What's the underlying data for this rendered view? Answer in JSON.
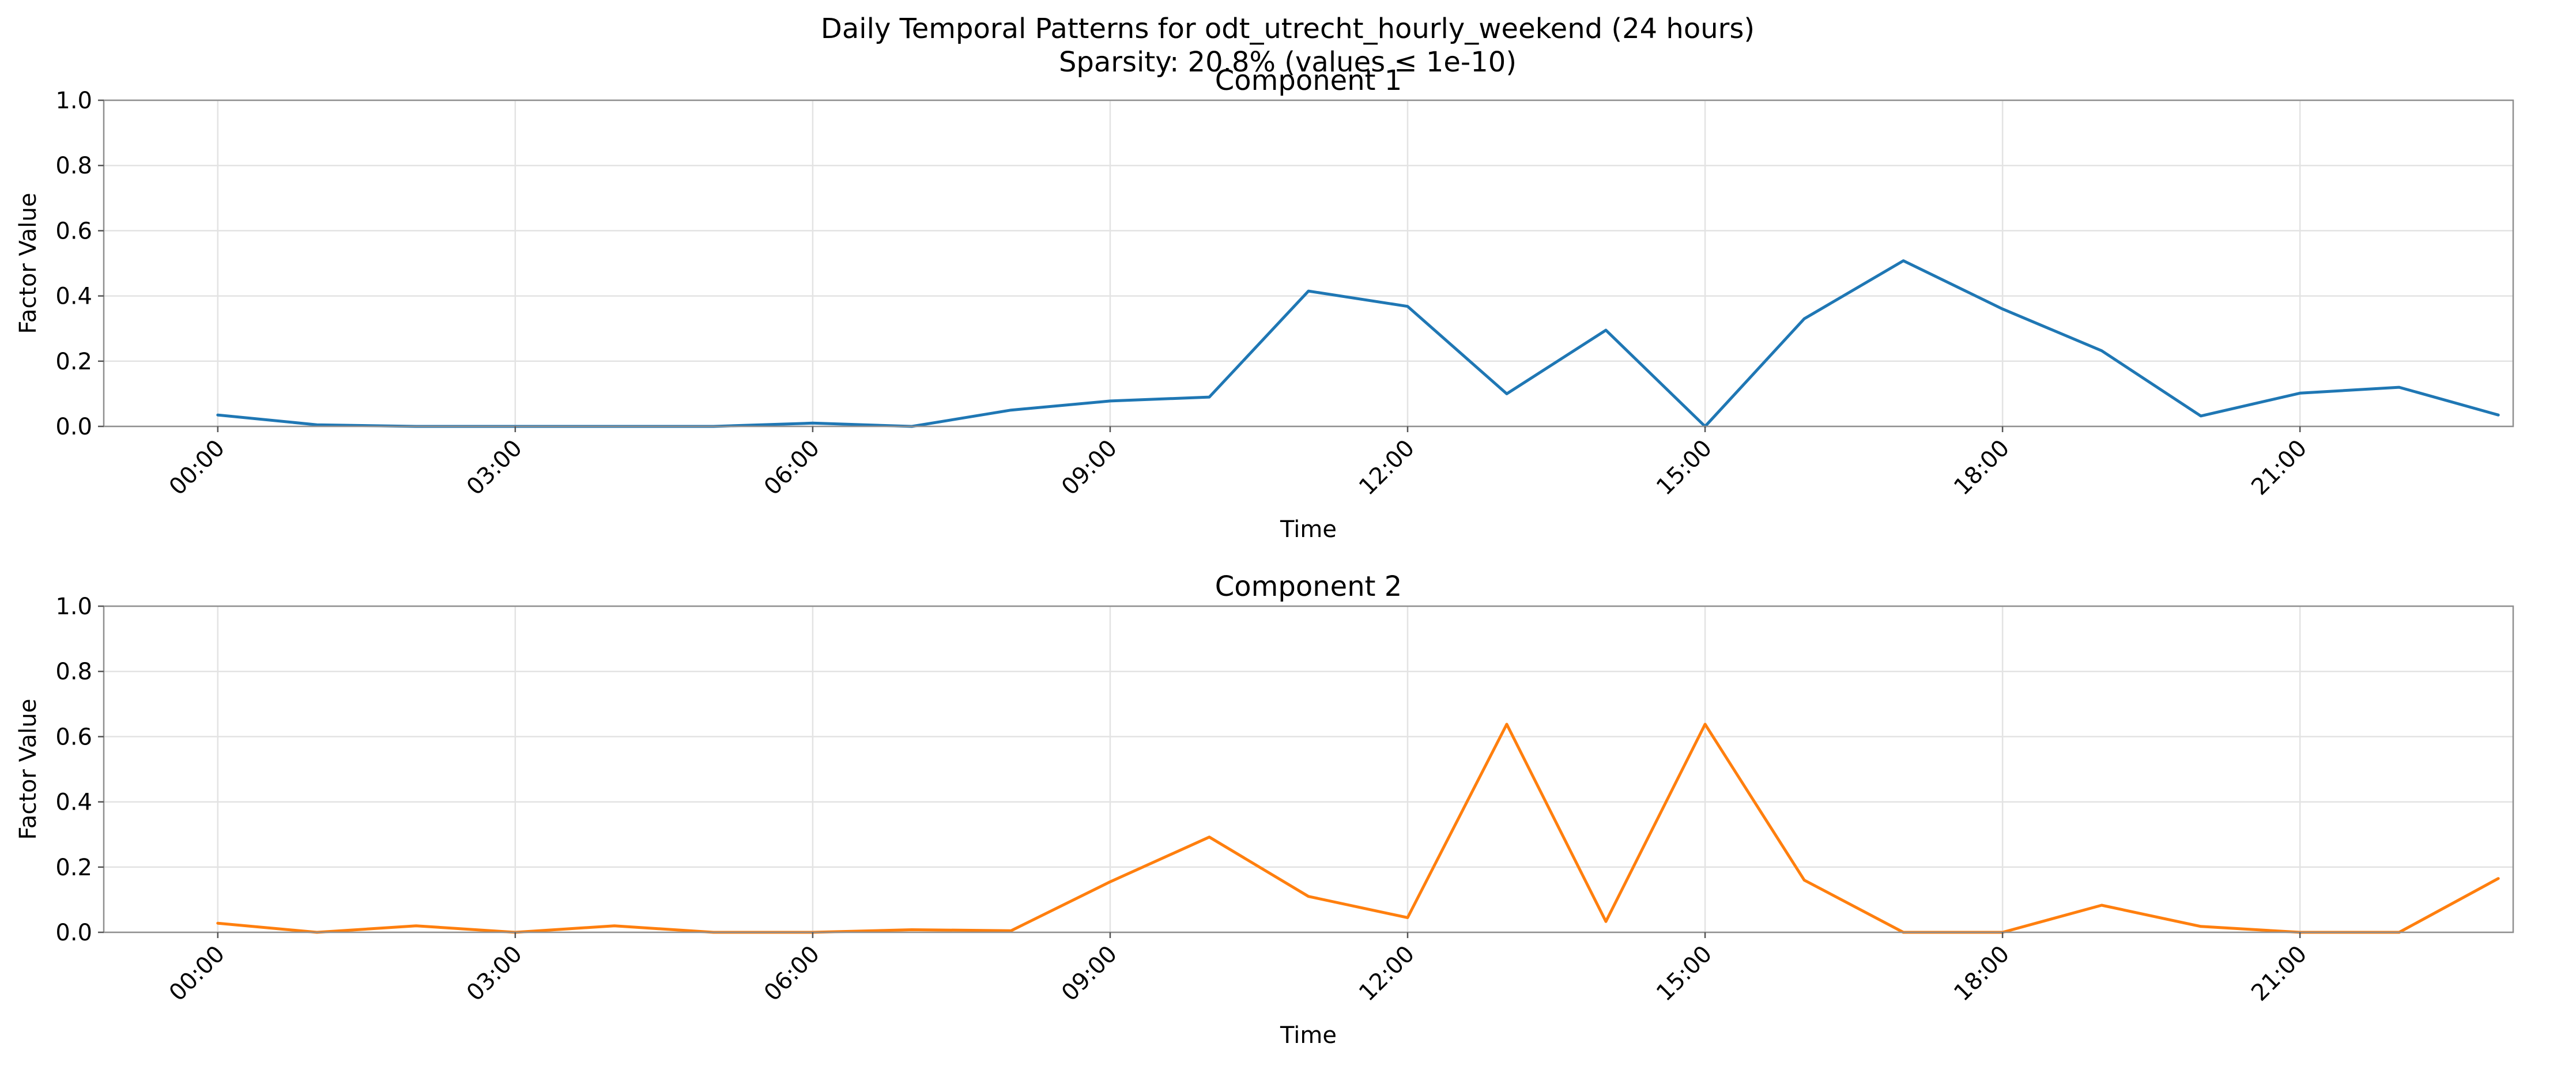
{
  "figure": {
    "title_line1": "Daily Temporal Patterns for odt_utrecht_hourly_weekend (24 hours)",
    "title_line2": "Sparsity: 20.8% (values ≤ 1e-10)"
  },
  "chart_data": [
    {
      "type": "line",
      "title": "Component 1",
      "xlabel": "Time",
      "ylabel": "Factor Value",
      "ylim": [
        0,
        1.0
      ],
      "yticks": [
        "0.0",
        "0.2",
        "0.4",
        "0.6",
        "0.8",
        "1.0"
      ],
      "xticks": [
        0,
        3,
        6,
        9,
        12,
        15,
        18,
        21
      ],
      "xtick_labels": [
        "00:00",
        "03:00",
        "06:00",
        "09:00",
        "12:00",
        "15:00",
        "18:00",
        "21:00"
      ],
      "grid": true,
      "color": "#1f77b4",
      "x": [
        0,
        1,
        2,
        3,
        4,
        5,
        6,
        7,
        8,
        9,
        10,
        11,
        12,
        13,
        14,
        15,
        16,
        17,
        18,
        19,
        20,
        21,
        22,
        23
      ],
      "values": [
        0.035,
        0.005,
        0.0,
        0.0,
        0.0,
        0.0,
        0.01,
        0.0,
        0.05,
        0.078,
        0.09,
        0.415,
        0.368,
        0.1,
        0.295,
        0.0,
        0.33,
        0.508,
        0.36,
        0.232,
        0.032,
        0.102,
        0.12,
        0.035
      ]
    },
    {
      "type": "line",
      "title": "Component 2",
      "xlabel": "Time",
      "ylabel": "Factor Value",
      "ylim": [
        0,
        1.0
      ],
      "yticks": [
        "0.0",
        "0.2",
        "0.4",
        "0.6",
        "0.8",
        "1.0"
      ],
      "xticks": [
        0,
        3,
        6,
        9,
        12,
        15,
        18,
        21
      ],
      "xtick_labels": [
        "00:00",
        "03:00",
        "06:00",
        "09:00",
        "12:00",
        "15:00",
        "18:00",
        "21:00"
      ],
      "grid": true,
      "color": "#ff7f0e",
      "x": [
        0,
        1,
        2,
        3,
        4,
        5,
        6,
        7,
        8,
        9,
        10,
        11,
        12,
        13,
        14,
        15,
        16,
        17,
        18,
        19,
        20,
        21,
        22,
        23
      ],
      "values": [
        0.028,
        0.0,
        0.02,
        0.0,
        0.02,
        0.0,
        0.0,
        0.008,
        0.005,
        0.155,
        0.292,
        0.11,
        0.045,
        0.638,
        0.033,
        0.638,
        0.16,
        0.0,
        0.0,
        0.083,
        0.018,
        0.0,
        0.0,
        0.165
      ]
    }
  ]
}
